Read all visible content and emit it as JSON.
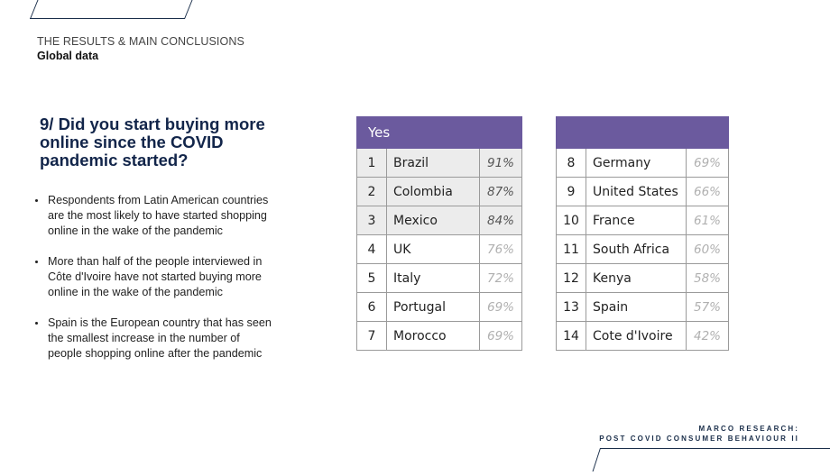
{
  "header": {
    "title": "THE RESULTS & MAIN CONCLUSIONS",
    "subtitle": "Global data"
  },
  "question": "9/ Did you start buying more online since the COVID pandemic started?",
  "bullets": [
    "Respondents from Latin American countries are the most likely to have started shopping online in the wake of the pandemic",
    "More than half of the people interviewed in Côte d'Ivoire have not started buying more online in the wake of the pandemic",
    "Spain is the European country that has seen the smallest increase in the number of people shopping online after the pandemic"
  ],
  "table_left": {
    "header": "Yes",
    "rows": [
      {
        "rank": "1",
        "country": "Brazil",
        "pct": "91%"
      },
      {
        "rank": "2",
        "country": "Colombia",
        "pct": "87%"
      },
      {
        "rank": "3",
        "country": "Mexico",
        "pct": "84%"
      },
      {
        "rank": "4",
        "country": "UK",
        "pct": "76%"
      },
      {
        "rank": "5",
        "country": "Italy",
        "pct": "72%"
      },
      {
        "rank": "6",
        "country": "Portugal",
        "pct": "69%"
      },
      {
        "rank": "7",
        "country": "Morocco",
        "pct": "69%"
      }
    ]
  },
  "table_right": {
    "header": "",
    "rows": [
      {
        "rank": "8",
        "country": "Germany",
        "pct": "69%"
      },
      {
        "rank": "9",
        "country": "United States",
        "pct": "66%"
      },
      {
        "rank": "10",
        "country": "France",
        "pct": "61%"
      },
      {
        "rank": "11",
        "country": "South Africa",
        "pct": "60%"
      },
      {
        "rank": "12",
        "country": "Kenya",
        "pct": "58%"
      },
      {
        "rank": "13",
        "country": "Spain",
        "pct": "57%"
      },
      {
        "rank": "14",
        "country": "Cote d'Ivoire",
        "pct": "42%"
      }
    ]
  },
  "footer": {
    "line1": "MARCO RESEARCH:",
    "line2": "POST COVID CONSUMER BEHAVIOUR II"
  },
  "colors": {
    "header_purple": "#6b5a9e",
    "title_navy": "#12254a",
    "highlight_row": "#ececec"
  }
}
